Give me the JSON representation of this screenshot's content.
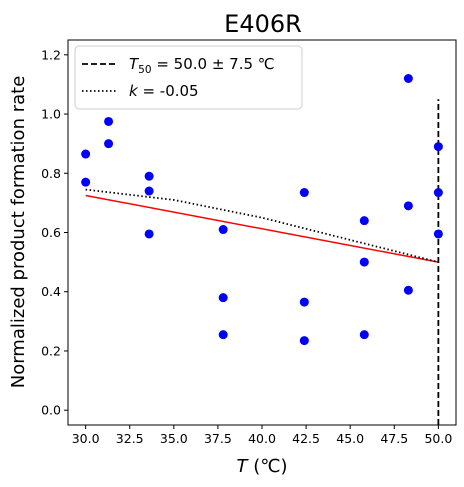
{
  "chart_data": {
    "type": "scatter",
    "title": "E406R",
    "xlabel_italic": "T",
    "xlabel_rest": " (℃)",
    "ylabel": "Normalized product formation rate",
    "xlim": [
      29.0,
      51.0
    ],
    "ylim": [
      -0.05,
      1.25
    ],
    "xticks": [
      30.0,
      32.5,
      35.0,
      37.5,
      40.0,
      42.5,
      45.0,
      47.5,
      50.0
    ],
    "xtick_labels": [
      "30.0",
      "32.5",
      "35.0",
      "37.5",
      "40.0",
      "42.5",
      "45.0",
      "47.5",
      "50.0"
    ],
    "yticks": [
      0.0,
      0.2,
      0.4,
      0.6,
      0.8,
      1.0,
      1.2
    ],
    "ytick_labels": [
      "0.0",
      "0.2",
      "0.4",
      "0.6",
      "0.8",
      "1.0",
      "1.2"
    ],
    "grid": false,
    "legend_position": "top-left",
    "points": {
      "color": "#0000ff",
      "x": [
        30.0,
        30.0,
        31.3,
        31.3,
        33.6,
        33.6,
        33.6,
        37.8,
        37.8,
        37.8,
        42.4,
        42.4,
        42.4,
        45.8,
        45.8,
        45.8,
        48.3,
        48.3,
        48.3,
        50.0,
        50.0,
        50.0
      ],
      "y": [
        0.865,
        0.77,
        0.975,
        0.9,
        0.79,
        0.74,
        0.595,
        0.61,
        0.38,
        0.255,
        0.735,
        0.365,
        0.235,
        0.64,
        0.5,
        0.255,
        1.12,
        0.69,
        0.405,
        0.89,
        0.735,
        0.595
      ]
    },
    "fit_line": {
      "color": "#ff0000",
      "x": [
        30.0,
        50.0
      ],
      "y": [
        0.725,
        0.5
      ]
    },
    "k_curve": {
      "color": "#000000",
      "x": [
        30.0,
        35.0,
        40.0,
        45.0,
        50.0
      ],
      "y": [
        0.745,
        0.71,
        0.65,
        0.575,
        0.5
      ]
    },
    "t50_line": {
      "color": "#000000",
      "x": 50.0,
      "y": [
        -0.05,
        1.05
      ]
    },
    "legend": [
      {
        "style": "dashed",
        "sym": "T",
        "sub": "50",
        "text": " = 50.0 ± 7.5 ℃"
      },
      {
        "style": "dotted",
        "sym": "k",
        "sub": "",
        "text": " = -0.05"
      }
    ]
  }
}
